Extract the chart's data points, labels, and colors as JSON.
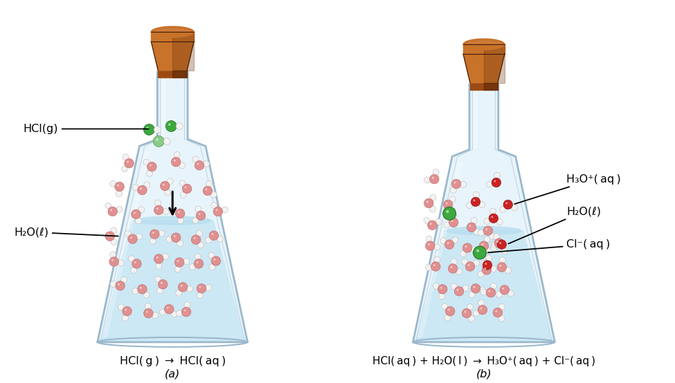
{
  "bg_color": "#ffffff",
  "water_color": "#cce8f5",
  "water_surface_color": "#b8dff0",
  "glass_fill": "#e8f4fb",
  "glass_outline": "#9ab8cc",
  "neck_fill": "#dceef8",
  "cork_top_color": "#c8722a",
  "cork_body_color": "#9b4a12",
  "cork_shadow": "#7a3508",
  "cork_highlight": "#d4854a",
  "atom_cl_green": "#3da83d",
  "atom_cl_pale": "#88cc88",
  "atom_red": "#cc2222",
  "atom_pink": "#e09090",
  "atom_white": "#f5f5f5",
  "atom_white_outline": "#cccccc",
  "atom_red_outline": "#882222",
  "atom_green_outline": "#1a6a1a",
  "arrow_color": "#111111",
  "text_color": "#000000",
  "label_a": "(a)",
  "label_b": "(b)",
  "eq_a_parts": [
    "HCl(",
    "g",
    ") → HCl(",
    "aq",
    ")"
  ],
  "eq_b_parts": [
    "HCl(",
    "aq",
    ") + H₂O(",
    "l",
    ") → H₃O⁺(",
    "aq",
    ") + Cl⁻(",
    "aq",
    ")"
  ],
  "ann_hclg": "HCl(g)",
  "ann_h2ol_a": "H₂O(l)",
  "ann_claq": "Cl⁻(aq)",
  "ann_h2ol_b": "H₂O(l)",
  "ann_h3oaq": "H₃O⁺(aq)"
}
